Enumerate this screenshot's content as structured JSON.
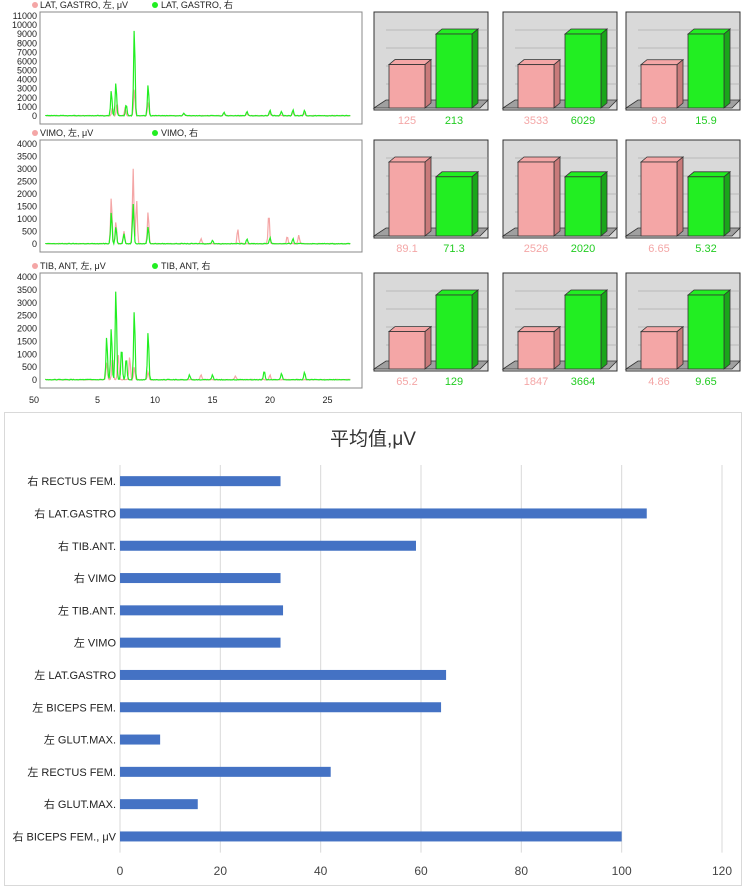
{
  "colors": {
    "left": "#f4a6a6",
    "right": "#22ee22",
    "bar": "#4472c4",
    "left_text": "#f4a6a6",
    "right_text": "#22cc22"
  },
  "emg_plots": [
    {
      "legend": [
        "LAT, GASTRO, 左, μV",
        "LAT, GASTRO, 右"
      ],
      "y_ticks": [
        "11000",
        "10000",
        "9000",
        "8000",
        "7000",
        "6000",
        "5000",
        "4000",
        "3000",
        "2000",
        "1000",
        "0"
      ],
      "ymax": 11000,
      "left_peaks": [
        [
          6.3,
          900
        ],
        [
          6.7,
          1400
        ],
        [
          7.4,
          800
        ],
        [
          8.2,
          3000
        ],
        [
          9.4,
          1500
        ],
        [
          12.5,
          200
        ],
        [
          16,
          300
        ],
        [
          18,
          250
        ],
        [
          20,
          300
        ],
        [
          22,
          400
        ],
        [
          23,
          300
        ]
      ],
      "right_peaks": [
        [
          6.2,
          2800
        ],
        [
          6.6,
          3700
        ],
        [
          7.5,
          1300
        ],
        [
          8.2,
          9800
        ],
        [
          9.4,
          3500
        ],
        [
          12.5,
          300
        ],
        [
          16,
          400
        ],
        [
          18,
          500
        ],
        [
          20,
          600
        ],
        [
          21,
          500
        ],
        [
          22,
          700
        ],
        [
          23,
          600
        ]
      ]
    },
    {
      "legend": [
        "VIMO, 左, μV",
        "VIMO, 右"
      ],
      "y_ticks": [
        "4000",
        "3500",
        "3000",
        "2500",
        "2000",
        "1500",
        "1000",
        "500",
        "0"
      ],
      "ymax": 4000,
      "left_peaks": [
        [
          6.2,
          1900
        ],
        [
          6.6,
          900
        ],
        [
          7.3,
          500
        ],
        [
          8.1,
          3000
        ],
        [
          8.4,
          1800
        ],
        [
          9.4,
          1300
        ],
        [
          14,
          200
        ],
        [
          17.2,
          600
        ],
        [
          19.9,
          1250
        ],
        [
          21.5,
          300
        ],
        [
          22.5,
          350
        ]
      ],
      "right_peaks": [
        [
          6.2,
          1300
        ],
        [
          6.6,
          700
        ],
        [
          7.3,
          400
        ],
        [
          8.1,
          1600
        ],
        [
          9.4,
          700
        ],
        [
          15,
          150
        ],
        [
          18,
          200
        ],
        [
          20,
          250
        ],
        [
          22,
          200
        ]
      ]
    },
    {
      "legend": [
        "TIB, ANT, 左, μV",
        "TIB, ANT, 右"
      ],
      "y_ticks": [
        "4000",
        "3500",
        "3000",
        "2500",
        "2000",
        "1500",
        "1000",
        "500",
        "0"
      ],
      "ymax": 4000,
      "x_ticks": [
        "50",
        "5",
        "10",
        "15",
        "20",
        "25"
      ],
      "left_peaks": [
        [
          5.8,
          700
        ],
        [
          6.3,
          900
        ],
        [
          6.8,
          1000
        ],
        [
          7.8,
          900
        ],
        [
          8.2,
          500
        ],
        [
          9.4,
          300
        ],
        [
          14,
          200
        ],
        [
          17,
          150
        ],
        [
          20,
          200
        ]
      ],
      "right_peaks": [
        [
          5.8,
          1700
        ],
        [
          6.2,
          2050
        ],
        [
          6.6,
          3600
        ],
        [
          7.1,
          1300
        ],
        [
          7.5,
          900
        ],
        [
          8.2,
          2750
        ],
        [
          9.4,
          1900
        ],
        [
          13,
          200
        ],
        [
          15,
          200
        ],
        [
          19.5,
          350
        ],
        [
          21,
          250
        ],
        [
          23,
          300
        ]
      ]
    }
  ],
  "bar_groups": [
    [
      {
        "left": 125,
        "right": 213
      },
      {
        "left": 3533,
        "right": 6029
      },
      {
        "left": 9.3,
        "right": 15.9
      }
    ],
    [
      {
        "left": 89.1,
        "right": 71.3
      },
      {
        "left": 2526,
        "right": 2020
      },
      {
        "left": 6.65,
        "right": 5.32
      }
    ],
    [
      {
        "left": 65.2,
        "right": 129
      },
      {
        "left": 1847,
        "right": 3664
      },
      {
        "left": 4.86,
        "right": 9.65
      }
    ]
  ],
  "bar_labels": [
    [
      "125",
      "213",
      "3533",
      "6029",
      "9.3",
      "15.9"
    ],
    [
      "89.1",
      "71.3",
      "2526",
      "2020",
      "6.65",
      "5.32"
    ],
    [
      "65.2",
      "129",
      "1847",
      "3664",
      "4.86",
      "9.65"
    ]
  ],
  "chart_data": {
    "type": "bar",
    "orientation": "horizontal",
    "title": "平均值,μV",
    "categories": [
      "右 RECTUS FEM.",
      "右 LAT.GASTRO",
      "右 TIB.ANT.",
      "右 VIMO",
      "左 TIB.ANT.",
      "左 VIMO",
      "左 LAT.GASTRO",
      "左 BICEPS FEM.",
      "左 GLUT.MAX.",
      "左 RECTUS FEM.",
      "右 GLUT.MAX.",
      "右 BICEPS FEM., μV"
    ],
    "values": [
      32,
      105,
      59,
      32,
      32.5,
      32,
      65,
      64,
      8,
      42,
      15.5,
      100
    ],
    "xlim": [
      0,
      120
    ],
    "x_ticks": [
      "0",
      "20",
      "40",
      "60",
      "80",
      "100",
      "120"
    ],
    "grid": true
  }
}
